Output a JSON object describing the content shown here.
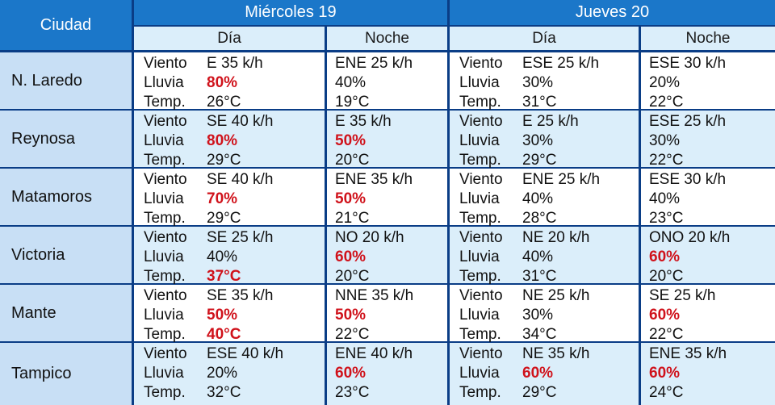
{
  "header": {
    "city_label": "Ciudad",
    "days": [
      {
        "label": "Miércoles 19",
        "sub": [
          "Día",
          "Noche"
        ]
      },
      {
        "label": "Jueves 20",
        "sub": [
          "Día",
          "Noche"
        ]
      }
    ]
  },
  "labels": {
    "wind": "Viento",
    "rain": "Lluvia",
    "temp": "Temp."
  },
  "colors": {
    "header": "#1b77c9",
    "border": "#0a3d86",
    "alert_red": "#d0121b",
    "row_alt": "#dbeefa",
    "city_bg": "#c8dff5"
  },
  "rows": [
    {
      "city": "N. Laredo",
      "cells": [
        {
          "wind": "E 35 k/h",
          "rain": "80%",
          "temp": "26°C",
          "red": [
            "rain"
          ],
          "labeled": true
        },
        {
          "wind": "ENE 25 k/h",
          "rain": "40%",
          "temp": "19°C",
          "red": [],
          "labeled": false
        },
        {
          "wind": "ESE 25 k/h",
          "rain": "30%",
          "temp": "31°C",
          "red": [],
          "labeled": true
        },
        {
          "wind": "ESE 30 k/h",
          "rain": "20%",
          "temp": "22°C",
          "red": [],
          "labeled": false
        }
      ]
    },
    {
      "city": "Reynosa",
      "cells": [
        {
          "wind": "SE 40 k/h",
          "rain": "80%",
          "temp": "29°C",
          "red": [
            "rain"
          ],
          "labeled": true
        },
        {
          "wind": "E 35 k/h",
          "rain": "50%",
          "temp": "20°C",
          "red": [
            "rain"
          ],
          "labeled": false
        },
        {
          "wind": "E 25 k/h",
          "rain": "30%",
          "temp": "29°C",
          "red": [],
          "labeled": true
        },
        {
          "wind": "ESE 25 k/h",
          "rain": "30%",
          "temp": "22°C",
          "red": [],
          "labeled": false
        }
      ]
    },
    {
      "city": "Matamoros",
      "cells": [
        {
          "wind": "SE 40 k/h",
          "rain": "70%",
          "temp": "29°C",
          "red": [
            "rain"
          ],
          "labeled": true
        },
        {
          "wind": "ENE 35 k/h",
          "rain": "50%",
          "temp": "21°C",
          "red": [
            "rain"
          ],
          "labeled": false
        },
        {
          "wind": "ENE 25 k/h",
          "rain": "40%",
          "temp": "28°C",
          "red": [],
          "labeled": true
        },
        {
          "wind": "ESE 30 k/h",
          "rain": "40%",
          "temp": "23°C",
          "red": [],
          "labeled": false
        }
      ]
    },
    {
      "city": "Victoria",
      "cells": [
        {
          "wind": "SE 25 k/h",
          "rain": "40%",
          "temp": "37°C",
          "red": [
            "temp"
          ],
          "labeled": true
        },
        {
          "wind": "NO 20 k/h",
          "rain": "60%",
          "temp": "20°C",
          "red": [
            "rain"
          ],
          "labeled": false
        },
        {
          "wind": "NE 20 k/h",
          "rain": "40%",
          "temp": "31°C",
          "red": [],
          "labeled": true
        },
        {
          "wind": "ONO 20 k/h",
          "rain": "60%",
          "temp": "20°C",
          "red": [
            "rain"
          ],
          "labeled": false
        }
      ]
    },
    {
      "city": "Mante",
      "cells": [
        {
          "wind": "SE 35 k/h",
          "rain": "50%",
          "temp": "40°C",
          "red": [
            "rain",
            "temp"
          ],
          "labeled": true
        },
        {
          "wind": "NNE 35 k/h",
          "rain": "50%",
          "temp": "22°C",
          "red": [
            "rain"
          ],
          "labeled": false
        },
        {
          "wind": "NE 25 k/h",
          "rain": "30%",
          "temp": "34°C",
          "red": [],
          "labeled": true
        },
        {
          "wind": "SE 25 k/h",
          "rain": "60%",
          "temp": "22°C",
          "red": [
            "rain"
          ],
          "labeled": false
        }
      ]
    },
    {
      "city": "Tampico",
      "cells": [
        {
          "wind": "ESE 40 k/h",
          "rain": "20%",
          "temp": "32°C",
          "red": [],
          "labeled": true
        },
        {
          "wind": "ENE 40 k/h",
          "rain": "60%",
          "temp": "23°C",
          "red": [
            "rain"
          ],
          "labeled": false
        },
        {
          "wind": "NE 35 k/h",
          "rain": "60%",
          "temp": "29°C",
          "red": [
            "rain"
          ],
          "labeled": true
        },
        {
          "wind": "ENE 35 k/h",
          "rain": "60%",
          "temp": "24°C",
          "red": [
            "rain"
          ],
          "labeled": false
        }
      ]
    }
  ]
}
